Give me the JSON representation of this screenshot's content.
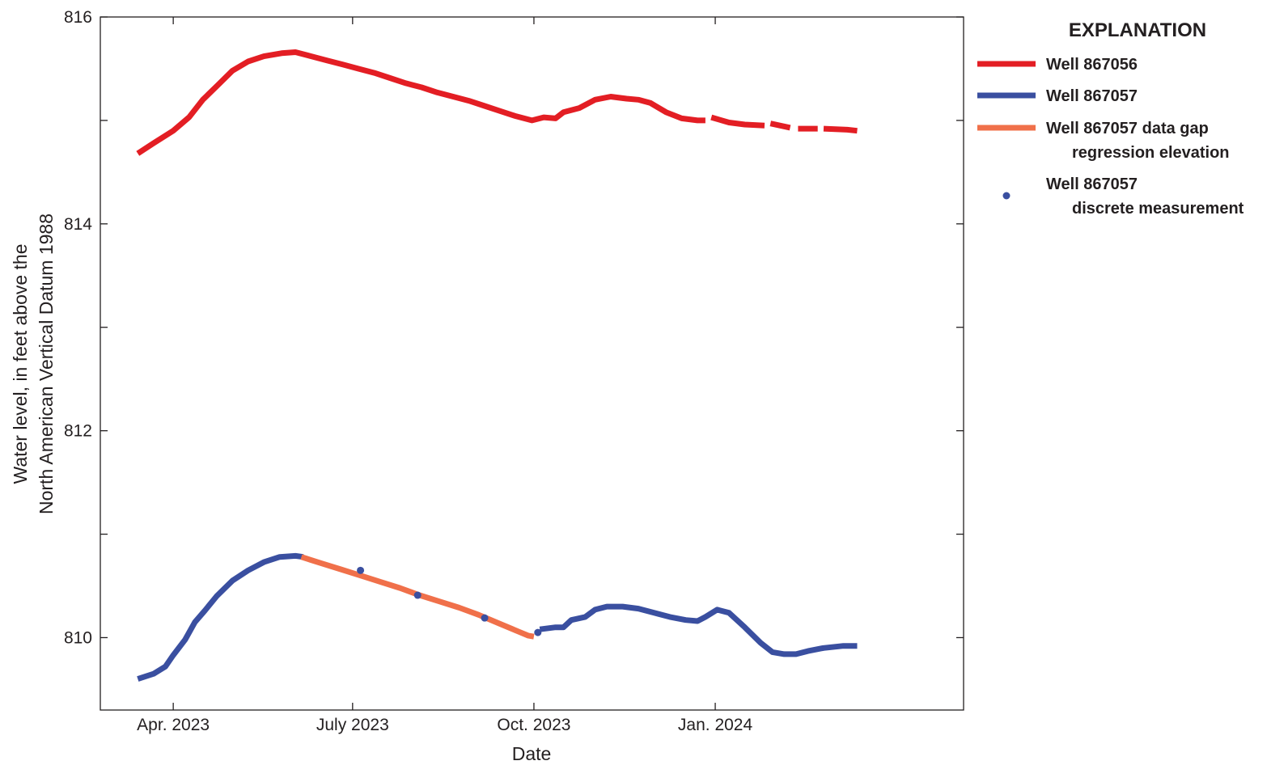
{
  "chart_data": {
    "type": "line",
    "title": "",
    "xlabel": "Date",
    "ylabel_lines": [
      "Water level, in feet above the",
      "North American Vertical Datum 1988"
    ],
    "x_unit": "days since 2023-01-01",
    "xlim": [
      53,
      491
    ],
    "ylim": [
      809.3,
      816
    ],
    "yticks": [
      {
        "value": 810,
        "label": "810"
      },
      {
        "value": 812,
        "label": "812"
      },
      {
        "value": 814,
        "label": "814"
      },
      {
        "value": 816,
        "label": "816"
      }
    ],
    "yminor": [
      811,
      813,
      815
    ],
    "xticks": [
      {
        "value": 90,
        "label": "Apr. 2023"
      },
      {
        "value": 181,
        "label": "July 2023"
      },
      {
        "value": 273,
        "label": "Oct. 2023"
      },
      {
        "value": 365,
        "label": "Jan. 2024"
      }
    ],
    "legend": {
      "title": "EXPLANATION",
      "position": "right",
      "items": [
        {
          "label_lines": [
            "Well 867056"
          ],
          "kind": "line",
          "color": "#e31e24"
        },
        {
          "label_lines": [
            "Well 867057"
          ],
          "kind": "line",
          "color": "#3a4fa0"
        },
        {
          "label_lines": [
            "Well 867057 data gap",
            "regression elevation"
          ],
          "kind": "line",
          "color": "#f0704a"
        },
        {
          "label_lines": [
            "Well 867057",
            "discrete measurement"
          ],
          "kind": "dot",
          "color": "#3a4fa0"
        }
      ]
    },
    "series": [
      {
        "name": "Well 867056",
        "color": "#e31e24",
        "segments": [
          [
            [
              72,
              814.68
            ],
            [
              80,
              814.78
            ],
            [
              90,
              814.9
            ],
            [
              98,
              815.03
            ],
            [
              105,
              815.2
            ],
            [
              112,
              815.33
            ],
            [
              120,
              815.48
            ],
            [
              128,
              815.57
            ],
            [
              136,
              815.62
            ],
            [
              145,
              815.65
            ],
            [
              152,
              815.66
            ],
            [
              160,
              815.62
            ],
            [
              168,
              815.58
            ],
            [
              176,
              815.54
            ],
            [
              184,
              815.5
            ],
            [
              192,
              815.46
            ],
            [
              200,
              815.41
            ],
            [
              208,
              815.36
            ],
            [
              216,
              815.32
            ],
            [
              224,
              815.27
            ],
            [
              232,
              815.23
            ],
            [
              240,
              815.19
            ],
            [
              248,
              815.14
            ],
            [
              256,
              815.09
            ],
            [
              264,
              815.04
            ],
            [
              272,
              815
            ],
            [
              278,
              815.03
            ],
            [
              284,
              815.02
            ],
            [
              288,
              815.08
            ],
            [
              296,
              815.12
            ],
            [
              304,
              815.2
            ],
            [
              312,
              815.23
            ],
            [
              320,
              815.21
            ],
            [
              326,
              815.2
            ],
            [
              332,
              815.17
            ],
            [
              340,
              815.08
            ],
            [
              348,
              815.02
            ],
            [
              356,
              815
            ],
            [
              360,
              815
            ]
          ],
          [
            [
              363,
              815.03
            ],
            [
              372,
              814.98
            ],
            [
              380,
              814.96
            ],
            [
              390,
              814.95
            ]
          ],
          [
            [
              393,
              814.97
            ],
            [
              403,
              814.93
            ]
          ],
          [
            [
              407,
              814.92
            ],
            [
              417,
              814.92
            ]
          ],
          [
            [
              420,
              814.92
            ],
            [
              432,
              814.91
            ],
            [
              437,
              814.9
            ]
          ]
        ]
      },
      {
        "name": "Well 867057",
        "color": "#3a4fa0",
        "segments": [
          [
            [
              72,
              809.6
            ],
            [
              80,
              809.65
            ],
            [
              86,
              809.72
            ],
            [
              90,
              809.83
            ],
            [
              96,
              809.98
            ],
            [
              101,
              810.15
            ],
            [
              106,
              810.26
            ],
            [
              112,
              810.4
            ],
            [
              120,
              810.55
            ],
            [
              128,
              810.65
            ],
            [
              136,
              810.73
            ],
            [
              144,
              810.78
            ],
            [
              152,
              810.79
            ],
            [
              156,
              810.78
            ]
          ],
          [
            [
              276,
              810.08
            ],
            [
              284,
              810.1
            ],
            [
              288,
              810.1
            ],
            [
              292,
              810.17
            ],
            [
              299,
              810.2
            ],
            [
              304,
              810.27
            ],
            [
              310,
              810.3
            ],
            [
              318,
              810.3
            ],
            [
              326,
              810.28
            ],
            [
              334,
              810.24
            ],
            [
              342,
              810.2
            ],
            [
              350,
              810.17
            ],
            [
              356,
              810.16
            ],
            [
              360,
              810.2
            ],
            [
              366,
              810.27
            ],
            [
              372,
              810.24
            ],
            [
              380,
              810.1
            ],
            [
              388,
              809.95
            ],
            [
              394,
              809.86
            ],
            [
              400,
              809.84
            ],
            [
              406,
              809.84
            ],
            [
              412,
              809.87
            ],
            [
              420,
              809.9
            ],
            [
              430,
              809.92
            ],
            [
              437,
              809.92
            ]
          ]
        ]
      },
      {
        "name": "Well 867057 data gap regression elevation",
        "color": "#f0704a",
        "segments": [
          [
            [
              155,
              810.78
            ],
            [
              165,
              810.72
            ],
            [
              175,
              810.66
            ],
            [
              185,
              810.6
            ],
            [
              195,
              810.54
            ],
            [
              205,
              810.48
            ],
            [
              215,
              810.41
            ],
            [
              225,
              810.35
            ],
            [
              235,
              810.29
            ],
            [
              245,
              810.22
            ],
            [
              255,
              810.14
            ],
            [
              265,
              810.06
            ],
            [
              270,
              810.02
            ],
            [
              273,
              810.01
            ]
          ]
        ]
      }
    ],
    "points": {
      "name": "Well 867057 discrete measurement",
      "color": "#3a4fa0",
      "values": [
        [
          185,
          810.65
        ],
        [
          214,
          810.41
        ],
        [
          248,
          810.19
        ],
        [
          275,
          810.05
        ]
      ]
    }
  }
}
